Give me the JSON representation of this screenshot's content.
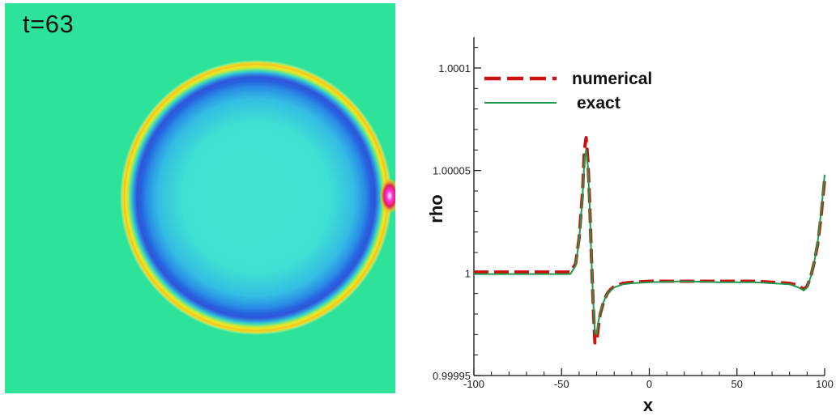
{
  "contour_panel": {
    "time_label": "t=63"
  },
  "chart_data": {
    "type": "line",
    "xlabel": "x",
    "ylabel": "rho",
    "xlim": [
      -100,
      100
    ],
    "ylim": [
      0.99995,
      1.000115
    ],
    "x_ticks": [
      -100,
      -50,
      0,
      50,
      100
    ],
    "x_tick_labels": [
      "-100",
      "-50",
      "0",
      "50",
      "100"
    ],
    "y_ticks": [
      0.99995,
      1,
      1.00005,
      1.0001
    ],
    "y_tick_labels": [
      "0.99995",
      "1",
      "1.00005",
      "1.0001"
    ],
    "grid": false,
    "legend_position": "top-left",
    "series": [
      {
        "name": "numerical",
        "style": "dashed",
        "color": "#cc1111",
        "x": [
          -100,
          -80,
          -60,
          -45,
          -42,
          -40,
          -38,
          -37,
          -36,
          -35,
          -34,
          -33,
          -32,
          -31,
          -30,
          -29,
          -28,
          -26,
          -24,
          -22,
          -20,
          -15,
          -10,
          0,
          20,
          40,
          60,
          70,
          80,
          85,
          88,
          90,
          92,
          94,
          96,
          98,
          100
        ],
        "y": [
          1.0000005,
          1.0000005,
          1.0000005,
          1.0000005,
          1.0000045,
          1.000017,
          1.00004,
          1.00006,
          1.000066,
          1.000055,
          1.000035,
          1.000008,
          0.999985,
          0.999966,
          0.999966,
          0.999974,
          0.99998,
          0.999986,
          0.99999,
          0.999992,
          0.9999935,
          0.999995,
          0.9999955,
          0.999996,
          0.999996,
          0.999996,
          0.999996,
          0.9999955,
          0.999995,
          0.999994,
          0.999992,
          0.9999935,
          0.999998,
          1.000005,
          1.000014,
          1.000028,
          1.000046
        ]
      },
      {
        "name": "exact",
        "style": "solid",
        "color": "#1a9a4a",
        "x": [
          -100,
          -80,
          -60,
          -45,
          -42,
          -40,
          -38,
          -37,
          -36,
          -35,
          -34,
          -33,
          -32,
          -31,
          -30,
          -29,
          -28,
          -26,
          -24,
          -22,
          -20,
          -15,
          -10,
          0,
          20,
          40,
          60,
          70,
          80,
          85,
          88,
          90,
          92,
          94,
          96,
          98,
          100
        ],
        "y": [
          0.9999995,
          0.9999995,
          0.9999995,
          0.9999995,
          1.0000035,
          1.000016,
          1.000038,
          1.000055,
          1.00006,
          1.000052,
          1.000033,
          1.000007,
          0.999987,
          0.999971,
          0.99997,
          0.999976,
          0.999981,
          0.999986,
          0.99999,
          0.9999915,
          0.999993,
          0.9999945,
          0.999995,
          0.9999955,
          0.999996,
          0.9999955,
          0.9999955,
          0.999995,
          0.9999945,
          0.999993,
          0.9999915,
          0.999993,
          0.999998,
          1.000005,
          1.000015,
          1.00003,
          1.000048
        ]
      }
    ]
  }
}
